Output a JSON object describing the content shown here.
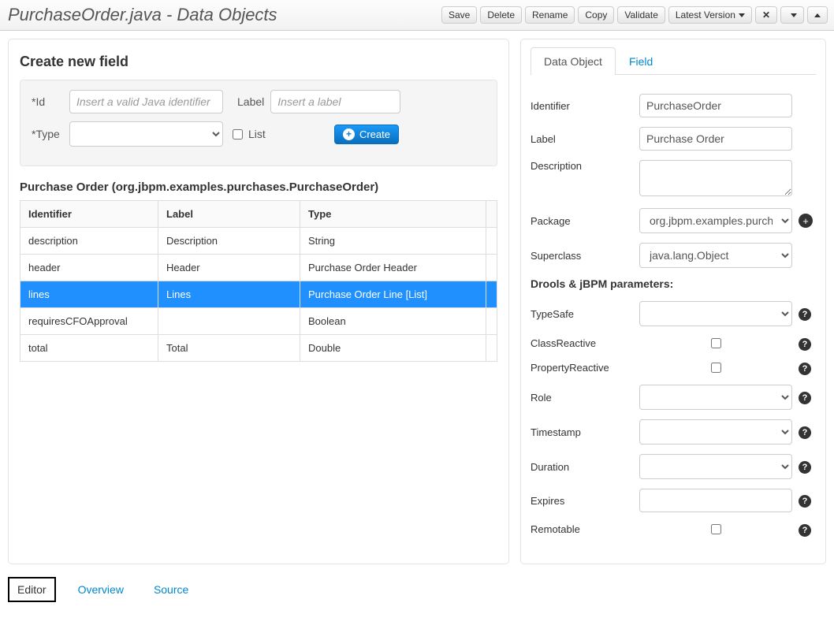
{
  "header": {
    "title": "PurchaseOrder.java - Data Objects",
    "buttons": {
      "save": "Save",
      "delete": "Delete",
      "rename": "Rename",
      "copy": "Copy",
      "validate": "Validate",
      "version": "Latest Version"
    }
  },
  "left": {
    "create_title": "Create new field",
    "id_label": "*Id",
    "id_placeholder": "Insert a valid Java identifier",
    "label_label": "Label",
    "label_placeholder": "Insert a label",
    "type_label": "*Type",
    "list_label": "List",
    "create_btn": "Create",
    "object_heading": "Purchase Order (org.jbpm.examples.purchases.PurchaseOrder)",
    "columns": {
      "identifier": "Identifier",
      "label": "Label",
      "type": "Type"
    },
    "rows": [
      {
        "identifier": "description",
        "label": "Description",
        "type": "String",
        "selected": false
      },
      {
        "identifier": "header",
        "label": "Header",
        "type": "Purchase Order Header",
        "selected": false
      },
      {
        "identifier": "lines",
        "label": "Lines",
        "type": "Purchase Order Line [List]",
        "selected": true
      },
      {
        "identifier": "requiresCFOApproval",
        "label": "",
        "type": "Boolean",
        "selected": false
      },
      {
        "identifier": "total",
        "label": "Total",
        "type": "Double",
        "selected": false
      }
    ]
  },
  "right": {
    "tabs": {
      "data_object": "Data Object",
      "field": "Field"
    },
    "identifier_label": "Identifier",
    "identifier_value": "PurchaseOrder",
    "label_label": "Label",
    "label_value": "Purchase Order",
    "description_label": "Description",
    "description_value": "",
    "package_label": "Package",
    "package_value": "org.jbpm.examples.purchases",
    "superclass_label": "Superclass",
    "superclass_value": "java.lang.Object",
    "drools_heading": "Drools & jBPM parameters:",
    "typesafe_label": "TypeSafe",
    "classreactive_label": "ClassReactive",
    "propertyreactive_label": "PropertyReactive",
    "role_label": "Role",
    "timestamp_label": "Timestamp",
    "duration_label": "Duration",
    "expires_label": "Expires",
    "remotable_label": "Remotable"
  },
  "bottom_tabs": {
    "editor": "Editor",
    "overview": "Overview",
    "source": "Source"
  }
}
